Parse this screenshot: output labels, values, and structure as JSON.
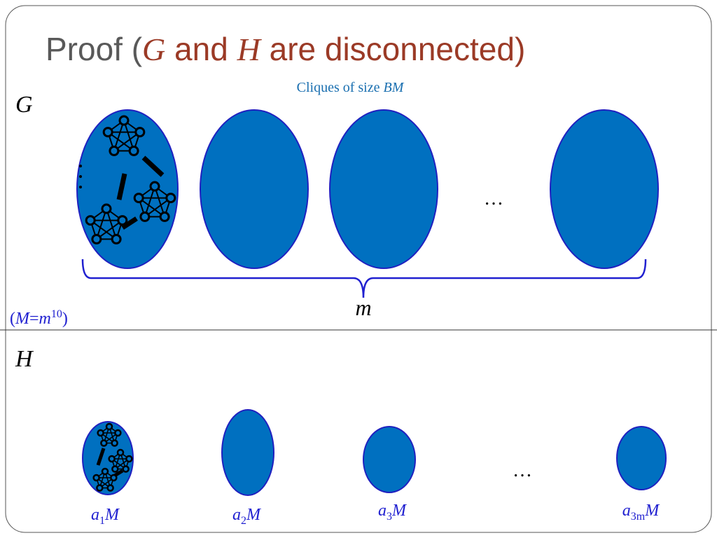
{
  "title": [
    "Proof (",
    "G",
    " and ",
    "H",
    " are disconnected)"
  ],
  "g_section": {
    "label": "G",
    "caption": [
      "Cliques of size ",
      "BM"
    ],
    "ellipsis": "…",
    "brace_label": "m",
    "note": [
      "(",
      "M",
      "=",
      "m",
      "10",
      ")"
    ]
  },
  "h_section": {
    "label": "H",
    "ellipsis": "…",
    "sizes": [
      [
        "a",
        "1",
        "M"
      ],
      [
        "a",
        "2",
        "M"
      ],
      [
        "a",
        "3",
        "M"
      ],
      [
        "a",
        "3m",
        "M"
      ]
    ]
  }
}
